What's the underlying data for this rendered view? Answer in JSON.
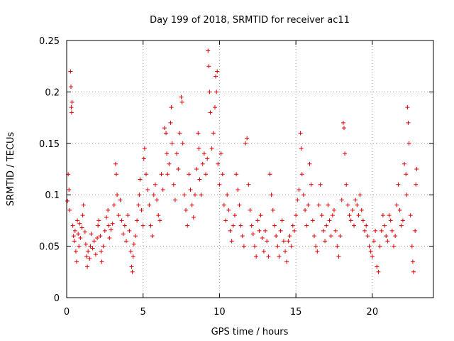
{
  "chart_data": {
    "type": "scatter",
    "title": "Day 199 of 2018, SRMTID for receiver ac11",
    "xlabel": "GPS time / hours",
    "ylabel": "SRMTID / TECUs",
    "xlim": [
      0,
      24
    ],
    "ylim": [
      0,
      0.25
    ],
    "xticks": [
      0,
      5,
      10,
      15,
      20
    ],
    "xtick_labels": [
      "0",
      "5",
      "10",
      "15",
      "20"
    ],
    "yticks": [
      0,
      0.05,
      0.1,
      0.15,
      0.2,
      0.25
    ],
    "ytick_labels": [
      "0",
      "0.05",
      "0.1",
      "0.15",
      "0.2",
      "0.25"
    ],
    "grid": true,
    "marker": "+",
    "color": "#e00000",
    "series": [
      {
        "name": "SRMTID",
        "points": [
          [
            0.05,
            0.094
          ],
          [
            0.1,
            0.12
          ],
          [
            0.15,
            0.105
          ],
          [
            0.2,
            0.085
          ],
          [
            0.25,
            0.22
          ],
          [
            0.28,
            0.205
          ],
          [
            0.3,
            0.185
          ],
          [
            0.32,
            0.18
          ],
          [
            0.35,
            0.19
          ],
          [
            0.4,
            0.07
          ],
          [
            0.45,
            0.06
          ],
          [
            0.5,
            0.055
          ],
          [
            0.55,
            0.065
          ],
          [
            0.6,
            0.045
          ],
          [
            0.65,
            0.035
          ],
          [
            0.7,
            0.075
          ],
          [
            0.75,
            0.062
          ],
          [
            0.8,
            0.05
          ],
          [
            0.85,
            0.072
          ],
          [
            0.9,
            0.058
          ],
          [
            1.0,
            0.068
          ],
          [
            1.05,
            0.08
          ],
          [
            1.1,
            0.09
          ],
          [
            1.2,
            0.064
          ],
          [
            1.25,
            0.052
          ],
          [
            1.3,
            0.04
          ],
          [
            1.35,
            0.03
          ],
          [
            1.4,
            0.045
          ],
          [
            1.5,
            0.038
          ],
          [
            1.55,
            0.05
          ],
          [
            1.6,
            0.062
          ],
          [
            1.7,
            0.048
          ],
          [
            1.8,
            0.055
          ],
          [
            1.9,
            0.042
          ],
          [
            2.0,
            0.058
          ],
          [
            2.05,
            0.07
          ],
          [
            2.1,
            0.075
          ],
          [
            2.2,
            0.06
          ],
          [
            2.25,
            0.045
          ],
          [
            2.3,
            0.035
          ],
          [
            2.4,
            0.05
          ],
          [
            2.5,
            0.065
          ],
          [
            2.6,
            0.078
          ],
          [
            2.7,
            0.085
          ],
          [
            2.75,
            0.07
          ],
          [
            2.8,
            0.058
          ],
          [
            2.9,
            0.066
          ],
          [
            3.0,
            0.072
          ],
          [
            3.1,
            0.09
          ],
          [
            3.2,
            0.13
          ],
          [
            3.25,
            0.12
          ],
          [
            3.3,
            0.1
          ],
          [
            3.4,
            0.08
          ],
          [
            3.5,
            0.095
          ],
          [
            3.6,
            0.075
          ],
          [
            3.7,
            0.062
          ],
          [
            3.8,
            0.07
          ],
          [
            3.9,
            0.055
          ],
          [
            4.0,
            0.08
          ],
          [
            4.1,
            0.065
          ],
          [
            4.2,
            0.045
          ],
          [
            4.25,
            0.03
          ],
          [
            4.3,
            0.025
          ],
          [
            4.35,
            0.04
          ],
          [
            4.4,
            0.052
          ],
          [
            4.5,
            0.06
          ],
          [
            4.6,
            0.075
          ],
          [
            4.7,
            0.09
          ],
          [
            4.75,
            0.1
          ],
          [
            4.8,
            0.115
          ],
          [
            4.9,
            0.085
          ],
          [
            5.0,
            0.07
          ],
          [
            5.05,
            0.135
          ],
          [
            5.1,
            0.145
          ],
          [
            5.2,
            0.12
          ],
          [
            5.3,
            0.105
          ],
          [
            5.4,
            0.09
          ],
          [
            5.5,
            0.07
          ],
          [
            5.6,
            0.06
          ],
          [
            5.7,
            0.1
          ],
          [
            5.8,
            0.11
          ],
          [
            5.9,
            0.095
          ],
          [
            6.0,
            0.08
          ],
          [
            6.1,
            0.075
          ],
          [
            6.2,
            0.12
          ],
          [
            6.3,
            0.105
          ],
          [
            6.4,
            0.165
          ],
          [
            6.5,
            0.16
          ],
          [
            6.55,
            0.14
          ],
          [
            6.6,
            0.12
          ],
          [
            6.7,
            0.13
          ],
          [
            6.8,
            0.17
          ],
          [
            6.85,
            0.185
          ],
          [
            6.9,
            0.15
          ],
          [
            7.0,
            0.11
          ],
          [
            7.1,
            0.095
          ],
          [
            7.2,
            0.14
          ],
          [
            7.3,
            0.125
          ],
          [
            7.4,
            0.16
          ],
          [
            7.5,
            0.195
          ],
          [
            7.55,
            0.19
          ],
          [
            7.6,
            0.15
          ],
          [
            7.7,
            0.1
          ],
          [
            7.8,
            0.085
          ],
          [
            7.9,
            0.07
          ],
          [
            8.0,
            0.12
          ],
          [
            8.1,
            0.105
          ],
          [
            8.2,
            0.09
          ],
          [
            8.3,
            0.078
          ],
          [
            8.4,
            0.1
          ],
          [
            8.5,
            0.125
          ],
          [
            8.6,
            0.16
          ],
          [
            8.65,
            0.145
          ],
          [
            8.7,
            0.115
          ],
          [
            8.8,
            0.1
          ],
          [
            8.9,
            0.13
          ],
          [
            9.0,
            0.14
          ],
          [
            9.1,
            0.12
          ],
          [
            9.2,
            0.135
          ],
          [
            9.25,
            0.24
          ],
          [
            9.3,
            0.225
          ],
          [
            9.35,
            0.2
          ],
          [
            9.4,
            0.18
          ],
          [
            9.5,
            0.145
          ],
          [
            9.6,
            0.16
          ],
          [
            9.7,
            0.185
          ],
          [
            9.75,
            0.215
          ],
          [
            9.8,
            0.2
          ],
          [
            9.85,
            0.22
          ],
          [
            9.9,
            0.13
          ],
          [
            10.0,
            0.11
          ],
          [
            10.1,
            0.14
          ],
          [
            10.2,
            0.12
          ],
          [
            10.3,
            0.09
          ],
          [
            10.4,
            0.075
          ],
          [
            10.5,
            0.1
          ],
          [
            10.6,
            0.085
          ],
          [
            10.7,
            0.065
          ],
          [
            10.8,
            0.055
          ],
          [
            10.9,
            0.07
          ],
          [
            11.0,
            0.08
          ],
          [
            11.1,
            0.12
          ],
          [
            11.2,
            0.105
          ],
          [
            11.3,
            0.09
          ],
          [
            11.4,
            0.07
          ],
          [
            11.5,
            0.06
          ],
          [
            11.6,
            0.05
          ],
          [
            11.7,
            0.15
          ],
          [
            11.8,
            0.155
          ],
          [
            11.9,
            0.11
          ],
          [
            12.0,
            0.085
          ],
          [
            12.1,
            0.07
          ],
          [
            12.2,
            0.062
          ],
          [
            12.3,
            0.05
          ],
          [
            12.4,
            0.04
          ],
          [
            12.5,
            0.075
          ],
          [
            12.6,
            0.065
          ],
          [
            12.7,
            0.08
          ],
          [
            12.8,
            0.058
          ],
          [
            12.9,
            0.045
          ],
          [
            13.0,
            0.065
          ],
          [
            13.1,
            0.055
          ],
          [
            13.2,
            0.04
          ],
          [
            13.3,
            0.12
          ],
          [
            13.4,
            0.1
          ],
          [
            13.5,
            0.085
          ],
          [
            13.6,
            0.07
          ],
          [
            13.7,
            0.06
          ],
          [
            13.8,
            0.05
          ],
          [
            13.9,
            0.04
          ],
          [
            14.0,
            0.065
          ],
          [
            14.1,
            0.075
          ],
          [
            14.2,
            0.055
          ],
          [
            14.3,
            0.045
          ],
          [
            14.4,
            0.035
          ],
          [
            14.5,
            0.055
          ],
          [
            14.6,
            0.06
          ],
          [
            14.7,
            0.05
          ],
          [
            14.8,
            0.07
          ],
          [
            14.9,
            0.065
          ],
          [
            15.0,
            0.08
          ],
          [
            15.1,
            0.095
          ],
          [
            15.2,
            0.105
          ],
          [
            15.3,
            0.16
          ],
          [
            15.35,
            0.145
          ],
          [
            15.4,
            0.12
          ],
          [
            15.5,
            0.1
          ],
          [
            15.6,
            0.085
          ],
          [
            15.7,
            0.07
          ],
          [
            15.8,
            0.09
          ],
          [
            15.9,
            0.13
          ],
          [
            16.0,
            0.11
          ],
          [
            16.1,
            0.075
          ],
          [
            16.2,
            0.06
          ],
          [
            16.3,
            0.05
          ],
          [
            16.4,
            0.045
          ],
          [
            16.5,
            0.09
          ],
          [
            16.6,
            0.11
          ],
          [
            16.7,
            0.08
          ],
          [
            16.8,
            0.065
          ],
          [
            16.9,
            0.055
          ],
          [
            17.0,
            0.07
          ],
          [
            17.1,
            0.09
          ],
          [
            17.2,
            0.075
          ],
          [
            17.3,
            0.06
          ],
          [
            17.4,
            0.08
          ],
          [
            17.5,
            0.085
          ],
          [
            17.6,
            0.065
          ],
          [
            17.7,
            0.05
          ],
          [
            17.8,
            0.04
          ],
          [
            17.9,
            0.06
          ],
          [
            18.0,
            0.095
          ],
          [
            18.1,
            0.17
          ],
          [
            18.15,
            0.165
          ],
          [
            18.2,
            0.14
          ],
          [
            18.3,
            0.11
          ],
          [
            18.4,
            0.09
          ],
          [
            18.5,
            0.08
          ],
          [
            18.6,
            0.075
          ],
          [
            18.7,
            0.085
          ],
          [
            18.8,
            0.07
          ],
          [
            18.9,
            0.095
          ],
          [
            19.0,
            0.09
          ],
          [
            19.1,
            0.08
          ],
          [
            19.2,
            0.1
          ],
          [
            19.3,
            0.085
          ],
          [
            19.4,
            0.075
          ],
          [
            19.5,
            0.065
          ],
          [
            19.6,
            0.07
          ],
          [
            19.7,
            0.06
          ],
          [
            19.8,
            0.05
          ],
          [
            19.9,
            0.045
          ],
          [
            20.0,
            0.04
          ],
          [
            20.1,
            0.055
          ],
          [
            20.2,
            0.065
          ],
          [
            20.3,
            0.03
          ],
          [
            20.4,
            0.025
          ],
          [
            20.5,
            0.05
          ],
          [
            20.6,
            0.065
          ],
          [
            20.7,
            0.08
          ],
          [
            20.8,
            0.07
          ],
          [
            20.9,
            0.06
          ],
          [
            21.0,
            0.055
          ],
          [
            21.1,
            0.08
          ],
          [
            21.2,
            0.075
          ],
          [
            21.3,
            0.065
          ],
          [
            21.4,
            0.05
          ],
          [
            21.5,
            0.06
          ],
          [
            21.6,
            0.09
          ],
          [
            21.7,
            0.11
          ],
          [
            21.8,
            0.085
          ],
          [
            21.9,
            0.07
          ],
          [
            22.0,
            0.075
          ],
          [
            22.1,
            0.13
          ],
          [
            22.2,
            0.12
          ],
          [
            22.25,
            0.1
          ],
          [
            22.3,
            0.185
          ],
          [
            22.35,
            0.17
          ],
          [
            22.4,
            0.15
          ],
          [
            22.5,
            0.08
          ],
          [
            22.6,
            0.05
          ],
          [
            22.65,
            0.035
          ],
          [
            22.7,
            0.025
          ],
          [
            22.8,
            0.065
          ],
          [
            22.85,
            0.11
          ],
          [
            22.9,
            0.125
          ]
        ]
      }
    ]
  }
}
